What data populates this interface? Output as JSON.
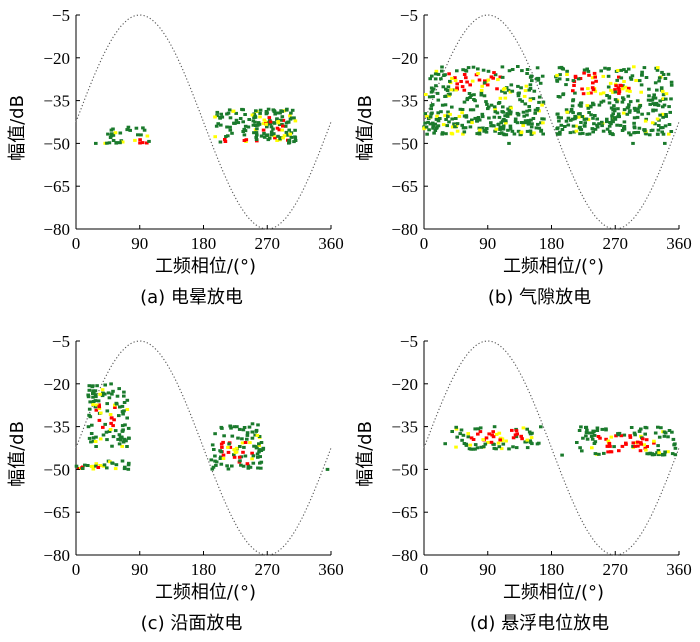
{
  "chart_data": [
    {
      "type": "scatter",
      "caption": "(a)  电晕放电",
      "xlabel": "工频相位/(°)",
      "ylabel": "幅值/dB",
      "xlim": [
        0,
        360
      ],
      "ylim": [
        -80,
        -5
      ],
      "xticks": [
        0,
        90,
        180,
        270,
        360
      ],
      "yticks": [
        -80,
        -65,
        -50,
        -35,
        -20,
        -5
      ],
      "reference_curve": {
        "form": "sine",
        "peak_phase": 90,
        "max": -5,
        "min": -80
      },
      "clusters": [
        {
          "phase": [
            40,
            105
          ],
          "amp": [
            -50,
            -44
          ],
          "hot_phase": [
            80,
            102
          ],
          "hot_amp": [
            -50,
            -48
          ]
        },
        {
          "phase": [
            195,
            310
          ],
          "amp": [
            -50,
            -38
          ],
          "hot_phase": [
            205,
            300
          ],
          "hot_amp": [
            -50,
            -48
          ]
        },
        {
          "phase": [
            250,
            305
          ],
          "amp": [
            -49,
            -38
          ],
          "hot_phase": [
            262,
            295
          ],
          "hot_amp": [
            -46,
            -40
          ]
        }
      ],
      "outliers": [
        [
          28,
          -50
        ],
        [
          310,
          -49
        ]
      ]
    },
    {
      "type": "scatter",
      "caption": "(b)  气隙放电",
      "xlabel": "工频相位/(°)",
      "ylabel": "幅值/dB",
      "xlim": [
        0,
        360
      ],
      "ylim": [
        -80,
        -5
      ],
      "xticks": [
        0,
        90,
        180,
        270,
        360
      ],
      "yticks": [
        -80,
        -65,
        -50,
        -35,
        -20,
        -5
      ],
      "reference_curve": {
        "form": "sine",
        "peak_phase": 90,
        "max": -5,
        "min": -80
      },
      "clusters": [
        {
          "phase": [
            0,
            170
          ],
          "amp": [
            -47,
            -23
          ],
          "hot_phase": [
            35,
            110
          ],
          "hot_amp": [
            -32,
            -25
          ]
        },
        {
          "phase": [
            185,
            350
          ],
          "amp": [
            -47,
            -23
          ],
          "hot_phase": [
            210,
            290
          ],
          "hot_amp": [
            -33,
            -25
          ]
        }
      ],
      "outliers": [
        [
          120,
          -50
        ],
        [
          295,
          -50
        ],
        [
          340,
          -50
        ]
      ]
    },
    {
      "type": "scatter",
      "caption": "(c)  沿面放电",
      "xlabel": "工频相位/(°)",
      "ylabel": "幅值/dB",
      "xlim": [
        0,
        360
      ],
      "ylim": [
        -80,
        -5
      ],
      "xticks": [
        0,
        90,
        180,
        270,
        360
      ],
      "yticks": [
        -80,
        -65,
        -50,
        -35,
        -20,
        -5
      ],
      "reference_curve": {
        "form": "sine",
        "peak_phase": 90,
        "max": -5,
        "min": -80
      },
      "clusters": [
        {
          "phase": [
            15,
            75
          ],
          "amp": [
            -42,
            -20
          ],
          "hot_phase": [
            28,
            55
          ],
          "hot_amp": [
            -36,
            -27
          ]
        },
        {
          "phase": [
            0,
            75
          ],
          "amp": [
            -50,
            -47
          ],
          "hot_phase": [
            0,
            40
          ],
          "hot_amp": [
            -50,
            -49
          ]
        },
        {
          "phase": [
            190,
            265
          ],
          "amp": [
            -50,
            -34
          ],
          "hot_phase": [
            205,
            250
          ],
          "hot_amp": [
            -48,
            -40
          ]
        }
      ],
      "outliers": [
        [
          355,
          -50
        ]
      ]
    },
    {
      "type": "scatter",
      "caption": "(d)  悬浮电位放电",
      "xlabel": "工频相位/(°)",
      "ylabel": "幅值/dB",
      "xlim": [
        0,
        360
      ],
      "ylim": [
        -80,
        -5
      ],
      "xticks": [
        0,
        90,
        180,
        270,
        360
      ],
      "yticks": [
        -80,
        -65,
        -50,
        -35,
        -20,
        -5
      ],
      "reference_curve": {
        "form": "sine",
        "peak_phase": 90,
        "max": -5,
        "min": -80
      },
      "clusters": [
        {
          "phase": [
            38,
            165
          ],
          "amp": [
            -43,
            -35
          ],
          "hot_phase": [
            55,
            140
          ],
          "hot_amp": [
            -41,
            -36
          ]
        },
        {
          "phase": [
            215,
            355
          ],
          "amp": [
            -45,
            -35
          ],
          "hot_phase": [
            245,
            330
          ],
          "hot_amp": [
            -44,
            -38
          ]
        }
      ],
      "outliers": [
        [
          30,
          -41
        ],
        [
          195,
          -45
        ]
      ]
    }
  ],
  "colors": {
    "low": "#1a7a2c",
    "mid": "#ffff00",
    "high": "#ff0000",
    "curve": "#555555"
  }
}
